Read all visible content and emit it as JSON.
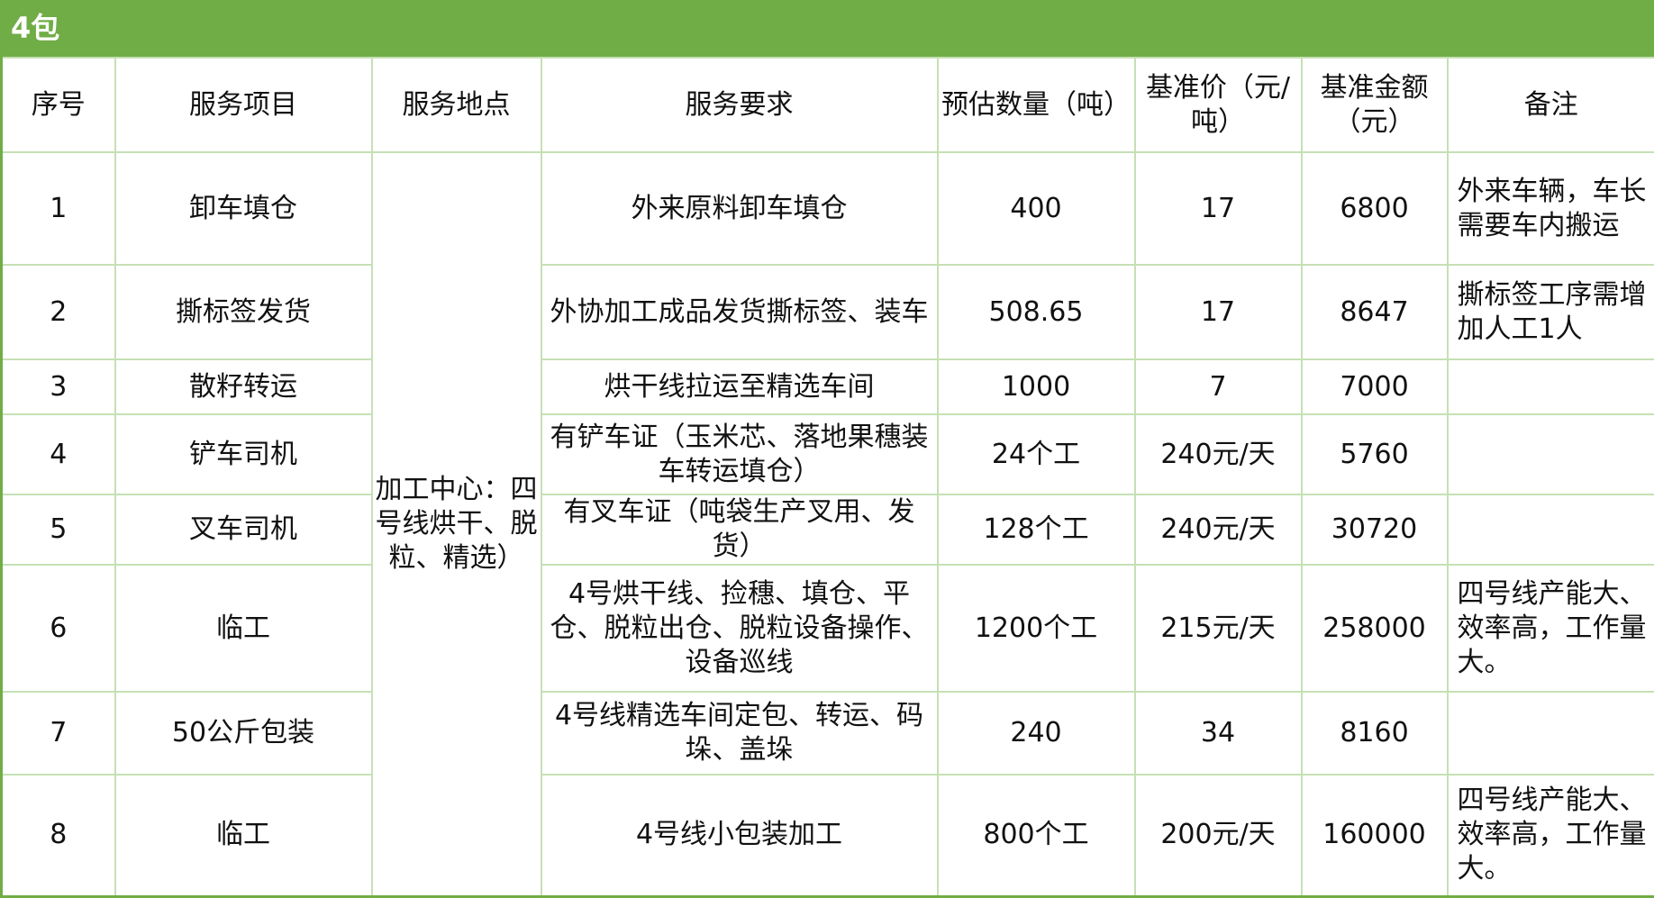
{
  "title": "4包",
  "colors": {
    "header_bg": "#70ad47",
    "grid": "#c6e0b4"
  },
  "headers": [
    "序号",
    "服务项目",
    "服务地点",
    "服务要求",
    "预估数量（吨）",
    "基准价（元/吨）",
    "基准金额（元）",
    "备注"
  ],
  "location": "加工中心：四号线烘干、脱粒、精选）",
  "rows": [
    {
      "no": "1",
      "item": "卸车填仓",
      "req": "外来原料卸车填仓",
      "qty": "400",
      "price": "17",
      "amount": "6800",
      "note": "外来车辆，车长需要车内搬运"
    },
    {
      "no": "2",
      "item": "撕标签发货",
      "req": "外协加工成品发货撕标签、装车",
      "qty": "508.65",
      "price": "17",
      "amount": "8647",
      "note": "撕标签工序需增加人工1人"
    },
    {
      "no": "3",
      "item": "散籽转运",
      "req": "烘干线拉运至精选车间",
      "qty": "1000",
      "price": "7",
      "amount": "7000",
      "note": ""
    },
    {
      "no": "4",
      "item": "铲车司机",
      "req": "有铲车证（玉米芯、落地果穗装车转运填仓）",
      "qty": "24个工",
      "price": "240元/天",
      "amount": "5760",
      "note": ""
    },
    {
      "no": "5",
      "item": "叉车司机",
      "req": "有叉车证（吨袋生产叉用、发货）",
      "qty": "128个工",
      "price": "240元/天",
      "amount": "30720",
      "note": ""
    },
    {
      "no": "6",
      "item": "临工",
      "req": "4号烘干线、捡穗、填仓、平仓、脱粒出仓、脱粒设备操作、设备巡线",
      "qty": "1200个工",
      "price": "215元/天",
      "amount": "258000",
      "note": "四号线产能大、效率高，工作量大。"
    },
    {
      "no": "7",
      "item": "50公斤包装",
      "req": "4号线精选车间定包、转运、码垛、盖垛",
      "qty": "240",
      "price": "34",
      "amount": "8160",
      "note": ""
    },
    {
      "no": "8",
      "item": "临工",
      "req": "4号线小包装加工",
      "qty": "800个工",
      "price": "200元/天",
      "amount": "160000",
      "note": "四号线产能大、效率高，工作量大。"
    }
  ]
}
